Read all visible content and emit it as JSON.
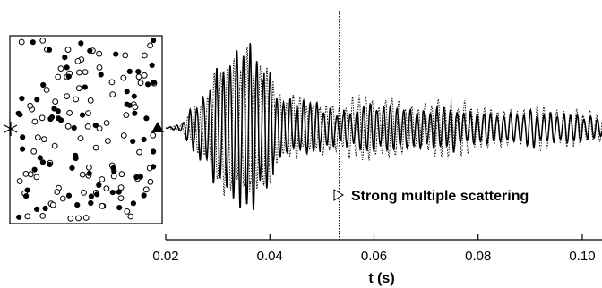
{
  "chart_data": {
    "type": "line",
    "xlabel": "t (s)",
    "ylabel": "",
    "xlim": [
      0.02,
      0.11
    ],
    "ylim": [
      -1.0,
      1.0
    ],
    "x_ticks": [
      0.02,
      0.04,
      0.06,
      0.08,
      0.1
    ],
    "x_tick_labels": [
      "0.02",
      "0.04",
      "0.06",
      "0.08",
      "0.10"
    ],
    "grid": false,
    "annotation": {
      "text": "Strong multiple scattering",
      "marker_t": 0.0533
    },
    "series": [
      {
        "style": "solid",
        "t": [
          0.02,
          0.023,
          0.026,
          0.029,
          0.032,
          0.0345,
          0.0365,
          0.039,
          0.042,
          0.046,
          0.05,
          0.0533,
          0.057,
          0.062,
          0.068,
          0.075,
          0.08,
          0.085,
          0.09,
          0.095,
          0.1,
          0.105,
          0.11
        ],
        "envelope": [
          0.0,
          0.05,
          0.3,
          0.58,
          0.8,
          0.92,
          0.96,
          0.7,
          0.4,
          0.28,
          0.24,
          0.18,
          0.22,
          0.26,
          0.22,
          0.24,
          0.18,
          0.16,
          0.2,
          0.15,
          0.14,
          0.12,
          0.11
        ],
        "frequency_hz": 780
      },
      {
        "style": "dotted",
        "t": [
          0.02,
          0.023,
          0.026,
          0.029,
          0.032,
          0.0345,
          0.0365,
          0.039,
          0.042,
          0.046,
          0.05,
          0.0533,
          0.057,
          0.062,
          0.068,
          0.075,
          0.08,
          0.085,
          0.09,
          0.095,
          0.1,
          0.105,
          0.11
        ],
        "envelope": [
          0.0,
          0.04,
          0.25,
          0.52,
          0.74,
          0.86,
          0.9,
          0.66,
          0.42,
          0.3,
          0.26,
          0.3,
          0.34,
          0.3,
          0.28,
          0.3,
          0.24,
          0.2,
          0.24,
          0.2,
          0.18,
          0.16,
          0.14
        ],
        "frequency_hz": 790
      }
    ],
    "inset": {
      "scatterer_count_filled": 70,
      "scatterer_count_open": 90,
      "source_symbol": "asterisk",
      "receiver_symbol": "triangle"
    }
  }
}
